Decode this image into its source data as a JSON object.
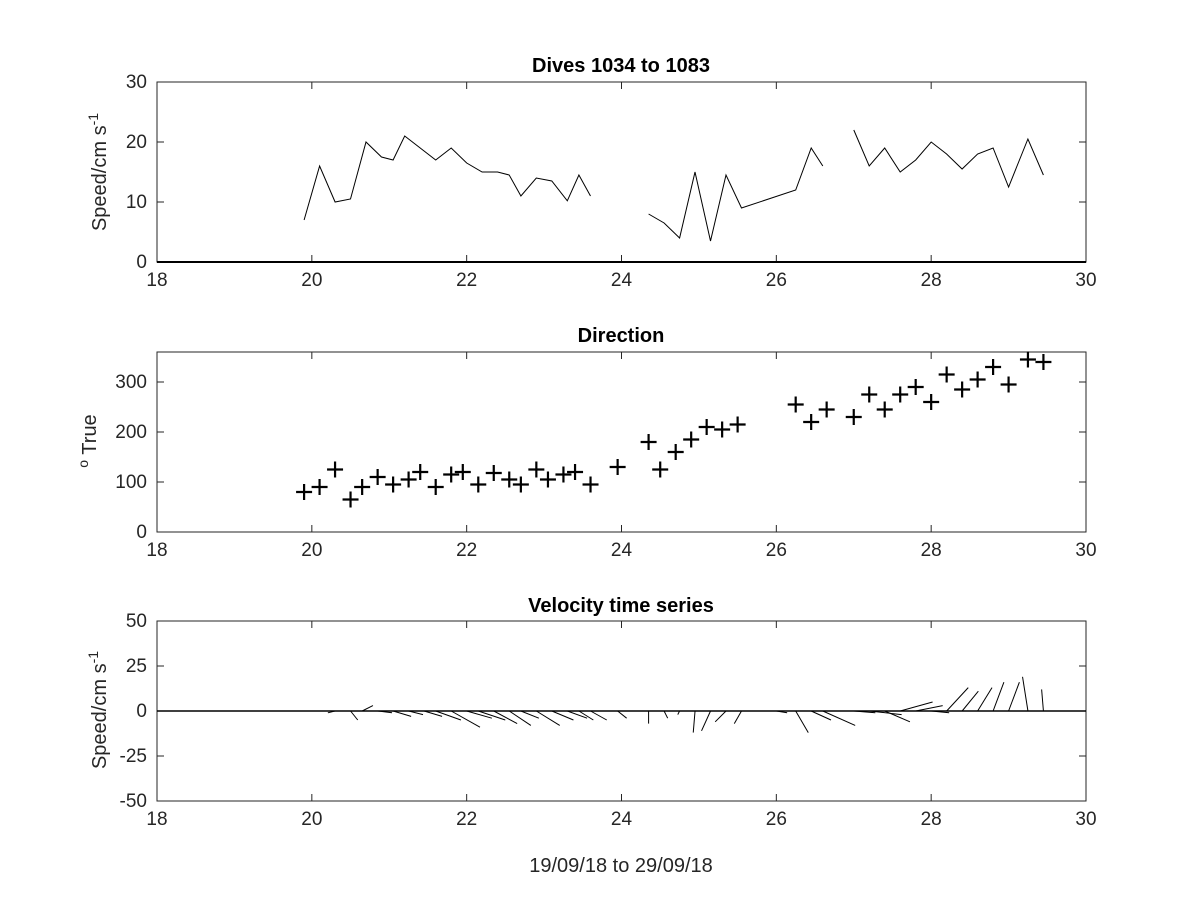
{
  "chart_data": [
    {
      "type": "line",
      "title": "Dives 1034 to 1083",
      "ylabel": "Speed/cm s-1",
      "xlim": [
        18,
        30
      ],
      "ylim": [
        0,
        30
      ],
      "xticks": [
        "18",
        "20",
        "22",
        "24",
        "26",
        "28",
        "30"
      ],
      "yticks": [
        "0",
        "10",
        "20",
        "30"
      ],
      "series": [
        {
          "x": [
            19.9,
            20.1,
            20.3,
            20.5,
            20.7,
            20.9,
            21.05,
            21.2,
            21.4,
            21.6,
            21.8,
            22.0,
            22.2,
            22.4,
            22.55,
            22.7,
            22.9,
            23.1,
            23.3,
            23.45,
            23.6
          ],
          "y": [
            7,
            16,
            10,
            10.5,
            20,
            17.5,
            17,
            21,
            19,
            17,
            19,
            16.5,
            15,
            15,
            14.5,
            11,
            14,
            13.5,
            10.2,
            14.5,
            11
          ]
        },
        {
          "x": [
            24.35,
            24.55,
            24.75,
            24.95,
            25.15,
            25.35,
            25.55,
            26.25,
            26.45,
            26.6
          ],
          "y": [
            8,
            6.5,
            4,
            15,
            3.5,
            14.5,
            9,
            12,
            19,
            16
          ]
        },
        {
          "x": [
            27.0,
            27.2,
            27.4,
            27.6,
            27.8,
            28.0,
            28.2,
            28.4,
            28.6,
            28.8,
            29.0,
            29.25,
            29.45
          ],
          "y": [
            22,
            16,
            19,
            15,
            17,
            20,
            18,
            15.5,
            18,
            19,
            12.5,
            20.5,
            14.5
          ]
        }
      ]
    },
    {
      "type": "scatter",
      "title": "Direction",
      "ylabel": "o True",
      "xlim": [
        18,
        30
      ],
      "ylim": [
        0,
        360
      ],
      "xticks": [
        "18",
        "20",
        "22",
        "24",
        "26",
        "28",
        "30"
      ],
      "yticks": [
        "0",
        "100",
        "200",
        "300"
      ],
      "x": [
        19.9,
        20.1,
        20.3,
        20.5,
        20.65,
        20.85,
        21.05,
        21.25,
        21.4,
        21.6,
        21.8,
        21.95,
        22.15,
        22.35,
        22.55,
        22.7,
        22.9,
        23.05,
        23.25,
        23.4,
        23.6,
        23.95,
        24.35,
        24.5,
        24.7,
        24.9,
        25.1,
        25.3,
        25.5,
        26.25,
        26.45,
        26.65,
        27.0,
        27.2,
        27.4,
        27.6,
        27.8,
        28.0,
        28.2,
        28.4,
        28.6,
        28.8,
        29.0,
        29.25,
        29.45
      ],
      "y": [
        80,
        90,
        125,
        65,
        90,
        110,
        95,
        105,
        120,
        90,
        115,
        120,
        95,
        118,
        105,
        95,
        125,
        105,
        115,
        120,
        95,
        130,
        180,
        125,
        160,
        185,
        210,
        205,
        215,
        255,
        220,
        245,
        230,
        275,
        245,
        275,
        290,
        260,
        315,
        285,
        305,
        330,
        295,
        345,
        340
      ]
    },
    {
      "type": "quiver",
      "title": "Velocity time series",
      "xlabel": "19/09/18 to 29/09/18",
      "ylabel": "Speed/cm s-1",
      "xlim": [
        18,
        30
      ],
      "ylim": [
        -50,
        50
      ],
      "xticks": [
        "18",
        "20",
        "22",
        "24",
        "26",
        "28",
        "30"
      ],
      "yticks": [
        "-50",
        "-25",
        "0",
        "25",
        "50"
      ],
      "t": [
        20.1,
        20.3,
        20.5,
        20.65,
        20.85,
        21.05,
        21.25,
        21.45,
        21.6,
        21.8,
        22.0,
        22.15,
        22.35,
        22.55,
        22.7,
        22.9,
        23.1,
        23.3,
        23.45,
        23.6,
        23.95,
        24.35,
        24.55,
        24.75,
        24.95,
        25.15,
        25.35,
        25.55,
        26.0,
        26.25,
        26.45,
        26.6,
        27.0,
        27.2,
        27.4,
        27.6,
        27.8,
        28.0,
        28.2,
        28.4,
        28.6,
        28.8,
        29.0,
        29.25,
        29.45
      ],
      "u": [
        1,
        -4,
        4,
        6,
        8,
        10,
        8,
        10,
        14,
        16,
        14,
        15,
        13,
        12,
        10,
        13,
        12,
        11,
        8,
        9,
        5,
        0,
        2,
        -1,
        -1,
        -5,
        -6,
        -4,
        6,
        7,
        11,
        18,
        12,
        18,
        14,
        18,
        15,
        10,
        12,
        9,
        8,
        6,
        6,
        -3,
        -1
      ],
      "v": [
        0,
        -1,
        -5,
        3,
        -1,
        -3,
        -2,
        -3,
        -5,
        -9,
        -4,
        -5,
        -7,
        -8,
        -4,
        -8,
        -5,
        -4,
        -5,
        -5,
        -4,
        -7,
        -4,
        -2,
        -12,
        -11,
        -6,
        -7,
        -1,
        -12,
        -5,
        -8,
        -1,
        -2,
        -6,
        5,
        3,
        -1,
        13,
        11,
        13,
        16,
        16,
        19,
        12
      ]
    }
  ]
}
